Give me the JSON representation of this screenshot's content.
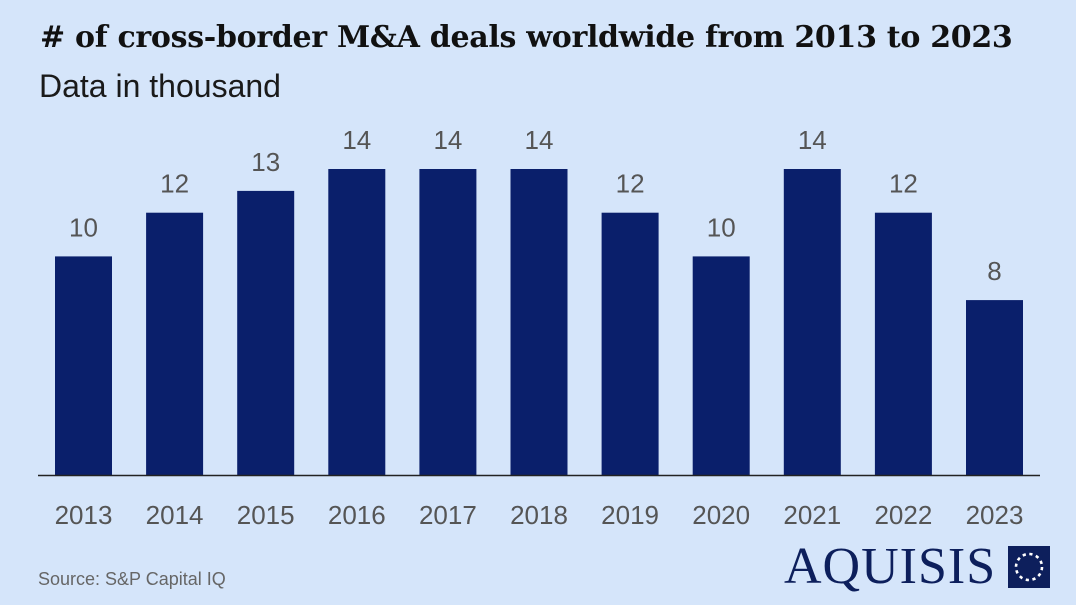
{
  "chart_data": {
    "type": "bar",
    "title": "# of cross-border M&A deals worldwide from 2013 to 2023",
    "subtitle": "Data in thousand",
    "categories": [
      "2013",
      "2014",
      "2015",
      "2016",
      "2017",
      "2018",
      "2019",
      "2020",
      "2021",
      "2022",
      "2023"
    ],
    "values": [
      10,
      12,
      13,
      14,
      14,
      14,
      12,
      10,
      14,
      12,
      8
    ],
    "data_labels": [
      "10",
      "12",
      "13",
      "14",
      "14",
      "14",
      "12",
      "10",
      "14",
      "12",
      "8"
    ],
    "ylim": [
      0,
      14
    ],
    "grid": false,
    "legend": "none",
    "bar_color": "#0a1f6b",
    "label_color": "#555555",
    "background": "#d5e5fa"
  },
  "footer": {
    "source": "Source: S&P Capital IQ"
  },
  "brand": {
    "name": "AQUISIS",
    "color": "#0d1f5c",
    "logo_icon": "dotted-circle-square-icon"
  }
}
